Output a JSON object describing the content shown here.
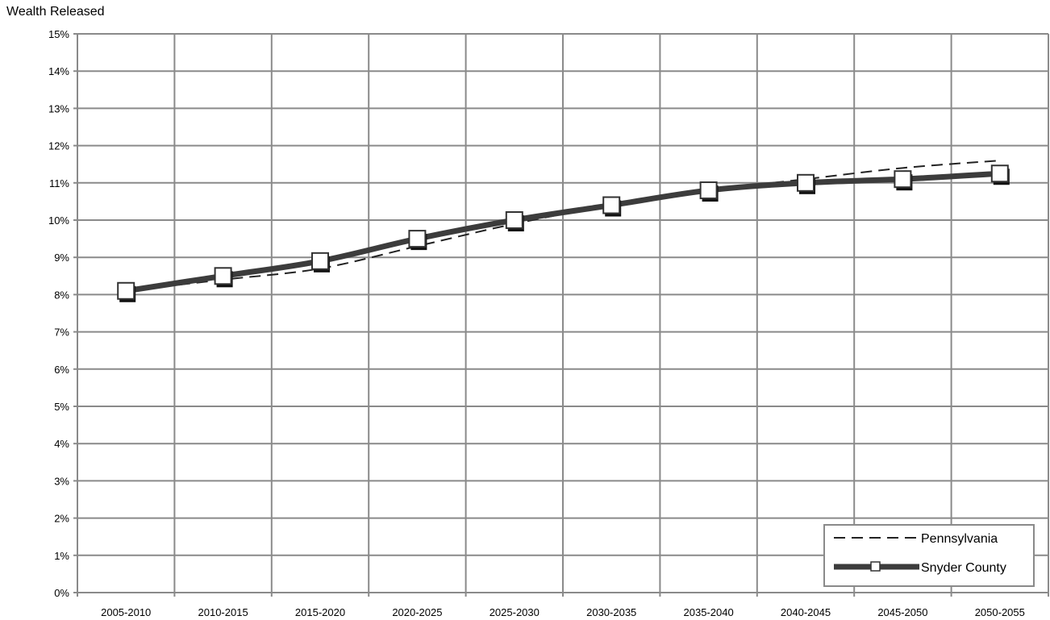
{
  "chart_data": {
    "type": "line",
    "title": "Wealth Released",
    "xlabel": "",
    "ylabel": "",
    "categories": [
      "2005-2010",
      "2010-2015",
      "2015-2020",
      "2020-2025",
      "2025-2030",
      "2030-2035",
      "2035-2040",
      "2040-2045",
      "2045-2050",
      "2050-2055"
    ],
    "y_tick_labels": [
      "0%",
      "1%",
      "2%",
      "3%",
      "4%",
      "5%",
      "6%",
      "7%",
      "8%",
      "9%",
      "10%",
      "11%",
      "12%",
      "13%",
      "14%",
      "15%"
    ],
    "ylim": [
      0,
      15
    ],
    "y_unit": "%",
    "grid": true,
    "legend_position": "bottom-right",
    "series": [
      {
        "name": "Pennsylvania",
        "style": "dashed",
        "color": "#222222",
        "values": [
          8.1,
          8.4,
          8.7,
          9.3,
          9.9,
          10.4,
          10.8,
          11.1,
          11.4,
          11.6
        ]
      },
      {
        "name": "Snyder County",
        "style": "solid-thick-square-markers",
        "color": "#3c3c3c",
        "values": [
          8.1,
          8.5,
          8.9,
          9.5,
          10.0,
          10.4,
          10.8,
          11.0,
          11.1,
          11.25
        ]
      }
    ]
  }
}
